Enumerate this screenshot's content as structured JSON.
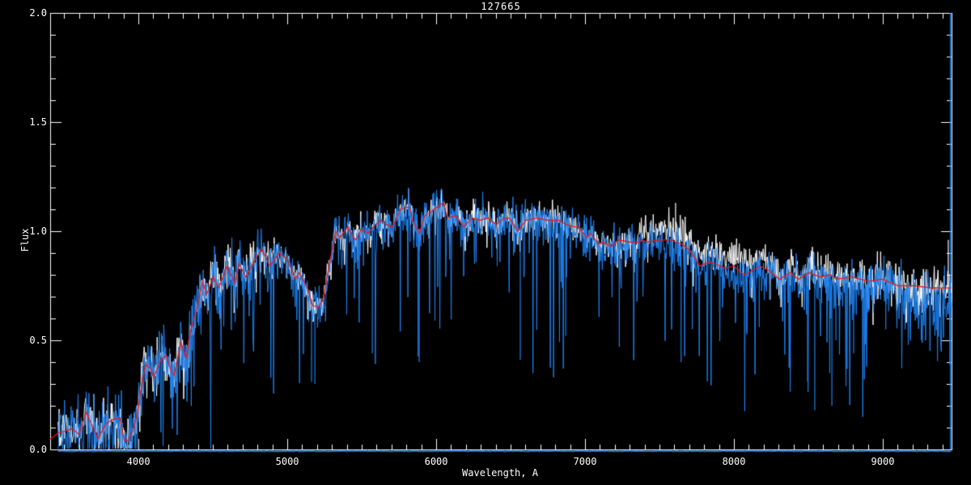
{
  "chart_data": {
    "type": "line",
    "title": "127665",
    "xlabel": "Wavelength, A",
    "ylabel": "Flux",
    "xlim": [
      3407,
      9462
    ],
    "ylim": [
      0.0,
      2.0
    ],
    "grid": false,
    "legend": "none",
    "background": "#000000",
    "frame_color": "#ffffff",
    "x_ticks": {
      "major_values": [
        4000,
        5000,
        6000,
        7000,
        8000,
        9000
      ],
      "labels": [
        "4000",
        "5000",
        "6000",
        "7000",
        "8000",
        "9000"
      ],
      "minor_step": 100
    },
    "y_ticks": {
      "major_values": [
        0.0,
        0.5,
        1.0,
        1.5,
        2.0
      ],
      "labels": [
        "0.0",
        "0.5",
        "1.0",
        "1.5",
        "2.0"
      ],
      "minor_step": 0.1
    },
    "series": [
      {
        "name": "observed-spectrum-white",
        "color": "#ffffff",
        "style": "noisy"
      },
      {
        "name": "observed-spectrum-blue",
        "color": "#1e80ee",
        "style": "noisy"
      },
      {
        "name": "template-fit-red",
        "color": "#e81a1a",
        "style": "smooth",
        "points": [
          [
            3403,
            0.045
          ],
          [
            3460,
            0.075
          ],
          [
            3510,
            0.085
          ],
          [
            3558,
            0.095
          ],
          [
            3600,
            0.068
          ],
          [
            3650,
            0.17
          ],
          [
            3675,
            0.13
          ],
          [
            3729,
            0.05
          ],
          [
            3784,
            0.12
          ],
          [
            3838,
            0.14
          ],
          [
            3875,
            0.145
          ],
          [
            3905,
            0.04
          ],
          [
            3929,
            0.04
          ],
          [
            3966,
            0.09
          ],
          [
            3993,
            0.17
          ],
          [
            4030,
            0.33
          ],
          [
            4049,
            0.39
          ],
          [
            4080,
            0.37
          ],
          [
            4103,
            0.33
          ],
          [
            4150,
            0.41
          ],
          [
            4185,
            0.43
          ],
          [
            4220,
            0.36
          ],
          [
            4240,
            0.34
          ],
          [
            4285,
            0.49
          ],
          [
            4322,
            0.42
          ],
          [
            4349,
            0.54
          ],
          [
            4394,
            0.65
          ],
          [
            4431,
            0.77
          ],
          [
            4458,
            0.71
          ],
          [
            4503,
            0.79
          ],
          [
            4540,
            0.74
          ],
          [
            4594,
            0.84
          ],
          [
            4649,
            0.76
          ],
          [
            4676,
            0.85
          ],
          [
            4721,
            0.79
          ],
          [
            4776,
            0.86
          ],
          [
            4828,
            0.92
          ],
          [
            4883,
            0.84
          ],
          [
            4946,
            0.9
          ],
          [
            5000,
            0.87
          ],
          [
            5054,
            0.78
          ],
          [
            5081,
            0.81
          ],
          [
            5135,
            0.74
          ],
          [
            5170,
            0.66
          ],
          [
            5210,
            0.65
          ],
          [
            5244,
            0.7
          ],
          [
            5280,
            0.84
          ],
          [
            5298,
            0.9
          ],
          [
            5325,
            1.0
          ],
          [
            5352,
            0.97
          ],
          [
            5407,
            1.02
          ],
          [
            5434,
            0.98
          ],
          [
            5461,
            0.96
          ],
          [
            5497,
            1.01
          ],
          [
            5543,
            0.99
          ],
          [
            5580,
            1.02
          ],
          [
            5625,
            1.05
          ],
          [
            5665,
            1.03
          ],
          [
            5706,
            1.02
          ],
          [
            5761,
            1.1
          ],
          [
            5800,
            1.11
          ],
          [
            5824,
            1.11
          ],
          [
            5842,
            1.05
          ],
          [
            5887,
            0.99
          ],
          [
            5923,
            1.07
          ],
          [
            5968,
            1.09
          ],
          [
            6023,
            1.12
          ],
          [
            6050,
            1.13
          ],
          [
            6077,
            1.06
          ],
          [
            6131,
            1.07
          ],
          [
            6186,
            1.02
          ],
          [
            6240,
            1.06
          ],
          [
            6294,
            1.05
          ],
          [
            6349,
            1.06
          ],
          [
            6403,
            1.03
          ],
          [
            6457,
            1.06
          ],
          [
            6494,
            1.06
          ],
          [
            6548,
            1.0
          ],
          [
            6603,
            1.05
          ],
          [
            6675,
            1.06
          ],
          [
            6748,
            1.05
          ],
          [
            6821,
            1.05
          ],
          [
            6875,
            1.03
          ],
          [
            6929,
            1.02
          ],
          [
            6957,
            1.02
          ],
          [
            7011,
            0.97
          ],
          [
            7038,
            0.99
          ],
          [
            7092,
            0.94
          ],
          [
            7120,
            0.95
          ],
          [
            7174,
            0.93
          ],
          [
            7228,
            0.96
          ],
          [
            7300,
            0.95
          ],
          [
            7364,
            0.95
          ],
          [
            7382,
            0.96
          ],
          [
            7418,
            0.95
          ],
          [
            7500,
            0.96
          ],
          [
            7527,
            0.96
          ],
          [
            7581,
            0.96
          ],
          [
            7608,
            0.95
          ],
          [
            7653,
            0.94
          ],
          [
            7707,
            0.91
          ],
          [
            7771,
            0.84
          ],
          [
            7834,
            0.86
          ],
          [
            7880,
            0.85
          ],
          [
            7943,
            0.83
          ],
          [
            7997,
            0.84
          ],
          [
            8070,
            0.8
          ],
          [
            8179,
            0.84
          ],
          [
            8233,
            0.82
          ],
          [
            8306,
            0.78
          ],
          [
            8378,
            0.81
          ],
          [
            8433,
            0.78
          ],
          [
            8505,
            0.81
          ],
          [
            8578,
            0.79
          ],
          [
            8650,
            0.8
          ],
          [
            8687,
            0.78
          ],
          [
            8796,
            0.79
          ],
          [
            8904,
            0.77
          ],
          [
            8995,
            0.78
          ],
          [
            9104,
            0.75
          ],
          [
            9213,
            0.75
          ],
          [
            9322,
            0.74
          ],
          [
            9412,
            0.74
          ],
          [
            9462,
            0.74
          ]
        ]
      }
    ],
    "deep_absorption_spikes": [
      [
        5163,
        0.31
      ],
      [
        5185,
        0.3
      ],
      [
        5571,
        0.44
      ],
      [
        5886,
        0.4
      ],
      [
        6565,
        0.41
      ],
      [
        6870,
        0.52
      ],
      [
        7230,
        0.47
      ],
      [
        7645,
        0.4
      ],
      [
        7720,
        0.55
      ],
      [
        8087,
        0.54
      ],
      [
        8170,
        0.56
      ],
      [
        8495,
        0.31
      ],
      [
        8543,
        0.18
      ],
      [
        8658,
        0.2
      ],
      [
        8685,
        0.5
      ],
      [
        8804,
        0.44
      ],
      [
        9020,
        0.55
      ],
      [
        9150,
        0.55
      ],
      [
        9350,
        0.52
      ]
    ],
    "emission_spikes": [
      [
        7608,
        1.13
      ],
      [
        9440,
        0.96
      ]
    ],
    "right_edge_spike": {
      "wl": 9455,
      "flux_range": [
        0.0,
        2.0
      ]
    },
    "zero_baseline": {
      "color": "#1e80ee",
      "flux": -0.008,
      "range": [
        3460,
        9462
      ]
    },
    "noise": {
      "seed": 127665,
      "data_start": 3460,
      "samples": 1650,
      "white_sigma": 0.07,
      "blue_sigma": 0.09,
      "spike_prob": 0.22,
      "spike_scale": 0.1,
      "deep_spike_prob": 0.02,
      "deep_spike_frac": [
        0.4,
        0.8
      ],
      "white_offset_7350_8250": 0.05,
      "white_offset_8250_8650": 0.025,
      "blue_offset_7400_8250": -0.015,
      "blue_offset_8650_9100": -0.03,
      "blue_offset_gt_9100": -0.05
    }
  }
}
